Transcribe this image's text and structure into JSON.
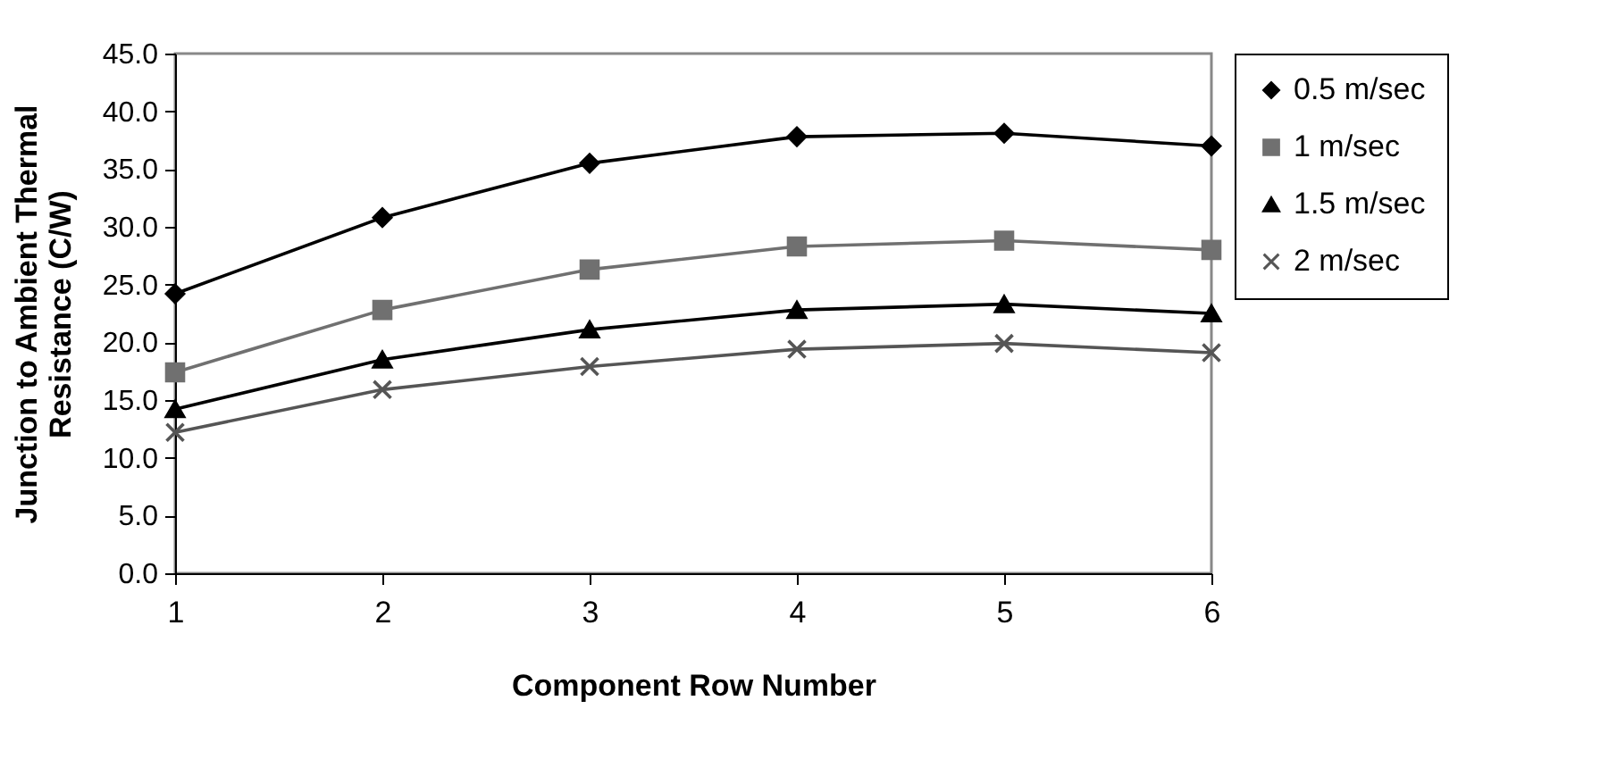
{
  "chart_data": {
    "type": "line",
    "xlabel": "Component Row Number",
    "ylabel": "Junction to Ambient Thermal\nResistance (C/W)",
    "x": [
      1,
      2,
      3,
      4,
      5,
      6
    ],
    "xlim": [
      1,
      6
    ],
    "xticks": [
      1,
      2,
      3,
      4,
      5,
      6
    ],
    "ylim": [
      0,
      45
    ],
    "yticks": [
      {
        "value": 0,
        "label": "0.0"
      },
      {
        "value": 5,
        "label": "5.0"
      },
      {
        "value": 10,
        "label": "10.0"
      },
      {
        "value": 15,
        "label": "15.0"
      },
      {
        "value": 20,
        "label": "20.0"
      },
      {
        "value": 25,
        "label": "25.0"
      },
      {
        "value": 30,
        "label": "30.0"
      },
      {
        "value": 35,
        "label": "35.0"
      },
      {
        "value": 40,
        "label": "40.0"
      },
      {
        "value": 45,
        "label": "45.0"
      }
    ],
    "grid": false,
    "legend": "right",
    "line_style": "solid",
    "series": [
      {
        "name": "0.5 m/sec",
        "color": "#000000",
        "marker": "diamond",
        "values": [
          24.2,
          30.8,
          35.5,
          37.8,
          38.1,
          37.0
        ]
      },
      {
        "name": "1 m/sec",
        "color": "#707070",
        "marker": "square",
        "values": [
          17.4,
          22.8,
          26.3,
          28.3,
          28.8,
          28.0
        ]
      },
      {
        "name": "1.5 m/sec",
        "color": "#000000",
        "marker": "triangle",
        "values": [
          14.2,
          18.5,
          21.1,
          22.8,
          23.3,
          22.5
        ]
      },
      {
        "name": "2 m/sec",
        "color": "#555555",
        "marker": "cross",
        "values": [
          12.2,
          15.9,
          17.9,
          19.4,
          19.9,
          19.1
        ]
      }
    ]
  }
}
